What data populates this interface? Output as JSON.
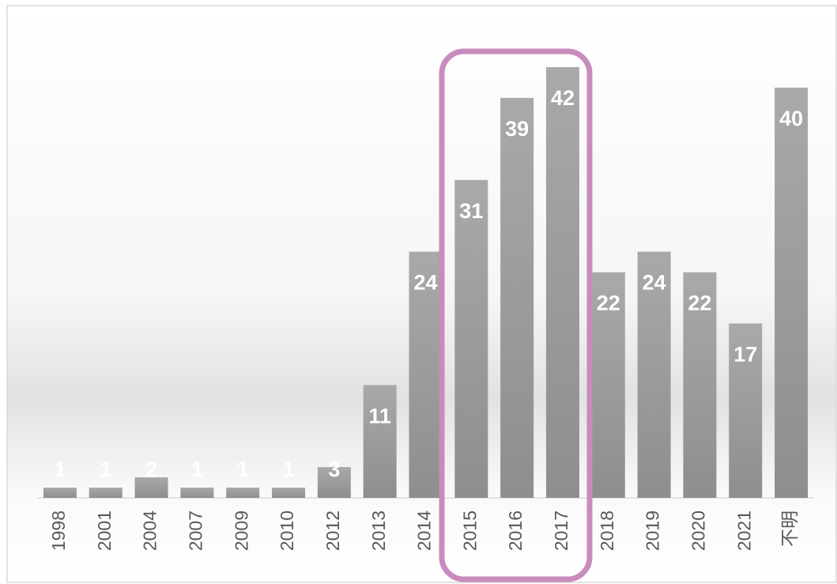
{
  "chart_data": {
    "type": "bar",
    "categories": [
      "1998",
      "2001",
      "2004",
      "2007",
      "2009",
      "2010",
      "2012",
      "2013",
      "2014",
      "2015",
      "2016",
      "2017",
      "2018",
      "2019",
      "2020",
      "2021",
      "不明"
    ],
    "values": [
      1,
      1,
      2,
      1,
      1,
      1,
      3,
      11,
      24,
      31,
      39,
      42,
      22,
      24,
      22,
      17,
      40
    ],
    "color": "#9d9d9d",
    "ylim": [
      0,
      45
    ]
  }
}
